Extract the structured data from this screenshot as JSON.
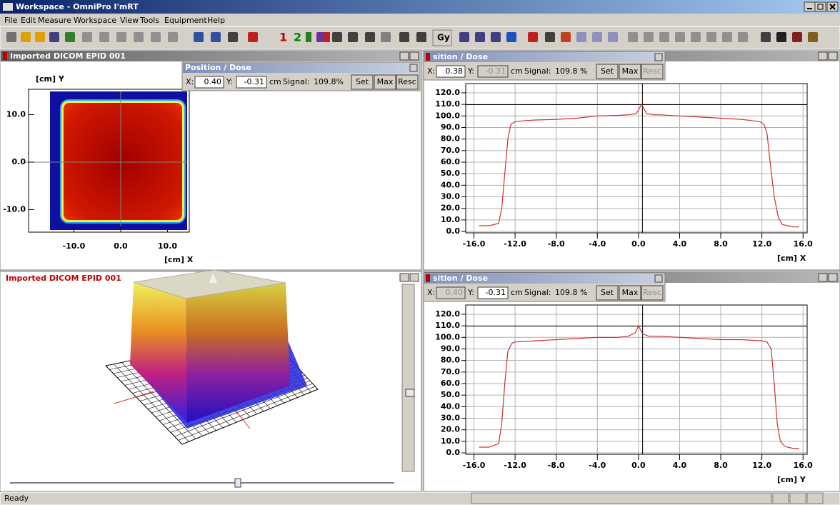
{
  "window": {
    "title": "Workspace - OmniPro I'mRT"
  },
  "menu": [
    "File",
    "Edit",
    "Measure",
    "Workspace",
    "View",
    "Tools",
    "Equipment",
    "Help"
  ],
  "toolbar": {
    "labels": [
      "1",
      "2",
      "Gy"
    ]
  },
  "panels": {
    "image_2d": {
      "title": "Imported DICOM EPID 001",
      "y_axis_label": "[cm] Y",
      "x_axis_label": "[cm] X",
      "xlim": [
        -15.1,
        14.2
      ],
      "ylim": [
        -14.3,
        14.9
      ],
      "xticks": [
        {
          "value": -10,
          "label": "-10.0"
        },
        {
          "value": 0,
          "label": "0.0"
        },
        {
          "value": 10,
          "label": "10.0"
        }
      ],
      "yticks": [
        {
          "value": 10,
          "label": "10.0"
        },
        {
          "value": 0,
          "label": "0.0"
        },
        {
          "value": -10,
          "label": "-10.0"
        }
      ]
    },
    "view_3d": {
      "title": "Imported DICOM EPID 001"
    }
  },
  "dialogs": [
    {
      "title": "Position / Dose",
      "x_label": "X:",
      "x": "0.40",
      "y_label": "Y:",
      "y": "-0.31",
      "unit": "cm",
      "signal_label": "Signal:",
      "signal": "109.8%",
      "buttons": [
        "Set",
        "Max",
        "Resc"
      ]
    },
    {
      "title": "sition / Dose",
      "x_label": "X:",
      "x": "0.38",
      "y_label": "Y:",
      "y": "-0.31",
      "unit": "cm",
      "signal_label": "Signal:",
      "signal": "109.8 %",
      "buttons": [
        "Set",
        "Max",
        "Resc"
      ]
    },
    {
      "title": "sition / Dose",
      "x_label": "X:",
      "x": "0.40",
      "y_label": "Y:",
      "y": "-0.31",
      "unit": "cm",
      "signal_label": "Signal:",
      "signal": "109.8 %",
      "buttons": [
        "Set",
        "Max",
        "Resc"
      ]
    }
  ],
  "chart_data": [
    {
      "type": "line",
      "xlabel": "[cm] X",
      "color": "#d03030",
      "grid": true,
      "x": [
        -15.5,
        -14.5,
        -13.6,
        -13.3,
        -13,
        -12.7,
        -12.4,
        -12,
        -11,
        -10,
        -8,
        -6,
        -4,
        -2,
        -1,
        -0.2,
        0.3,
        0.8,
        1.5,
        2,
        4,
        6,
        8,
        10,
        11,
        11.8,
        12.2,
        12.5,
        12.8,
        13.2,
        13.6,
        14,
        14.5,
        15,
        15.6
      ],
      "values": [
        5,
        5,
        7,
        20,
        50,
        80,
        93,
        95,
        96,
        96.5,
        97,
        98,
        100,
        100.5,
        101,
        102,
        110,
        102,
        101,
        101,
        100,
        99,
        98,
        97,
        96,
        95,
        93,
        85,
        60,
        30,
        12,
        6,
        5,
        4,
        4
      ],
      "xlim": [
        -16.8,
        16.4
      ],
      "ylim": [
        -1.2,
        128
      ],
      "xticks": [
        {
          "value": -16,
          "label": "-16.0"
        },
        {
          "value": -12,
          "label": "-12.0"
        },
        {
          "value": -8,
          "label": "-8.0"
        },
        {
          "value": -4,
          "label": "-4.0"
        },
        {
          "value": 0,
          "label": "0.0"
        },
        {
          "value": 4,
          "label": "4.0"
        },
        {
          "value": 8,
          "label": "8.0"
        },
        {
          "value": 12,
          "label": "12.0"
        },
        {
          "value": 16,
          "label": "16.0"
        }
      ],
      "yticks": [
        {
          "value": 0,
          "label": "0.0"
        },
        {
          "value": 10,
          "label": "10.0"
        },
        {
          "value": 20,
          "label": "20.0"
        },
        {
          "value": 30,
          "label": "30.0"
        },
        {
          "value": 40,
          "label": "40.0"
        },
        {
          "value": 50,
          "label": "50.0"
        },
        {
          "value": 60,
          "label": "60.0"
        },
        {
          "value": 70,
          "label": "70.0"
        },
        {
          "value": 80,
          "label": "80.0"
        },
        {
          "value": 90,
          "label": "90.0"
        },
        {
          "value": 100,
          "label": "100.0"
        },
        {
          "value": 110,
          "label": "110.0"
        },
        {
          "value": 120,
          "label": "120.0"
        }
      ]
    },
    {
      "type": "line",
      "xlabel": "[cm] Y",
      "color": "#d03030",
      "grid": true,
      "x": [
        -15.5,
        -14.5,
        -13.6,
        -13.3,
        -13,
        -12.7,
        -12.3,
        -12,
        -10,
        -8,
        -6,
        -4,
        -2,
        -1,
        -0.3,
        0,
        0.4,
        1,
        2,
        4,
        6,
        8,
        10,
        12,
        12.5,
        12.9,
        13.2,
        13.5,
        13.8,
        14.2,
        14.5,
        15,
        15.6
      ],
      "values": [
        5,
        5,
        8,
        25,
        60,
        88,
        95,
        96,
        97,
        98,
        99,
        100,
        100,
        101,
        104,
        110,
        103,
        101,
        101,
        100,
        99,
        98,
        98,
        97,
        96,
        90,
        60,
        25,
        10,
        6,
        5,
        4,
        4
      ],
      "xlim": [
        -16.8,
        16.4
      ],
      "ylim": [
        -1.2,
        128
      ],
      "xticks": [
        {
          "value": -16,
          "label": "-16.0"
        },
        {
          "value": -12,
          "label": "-12.0"
        },
        {
          "value": -8,
          "label": "-8.0"
        },
        {
          "value": -4,
          "label": "-4.0"
        },
        {
          "value": 0,
          "label": "0.0"
        },
        {
          "value": 4,
          "label": "4.0"
        },
        {
          "value": 8,
          "label": "8.0"
        },
        {
          "value": 12,
          "label": "12.0"
        },
        {
          "value": 16,
          "label": "16.0"
        }
      ],
      "yticks": [
        {
          "value": 0,
          "label": "0.0"
        },
        {
          "value": 10,
          "label": "10.0"
        },
        {
          "value": 20,
          "label": "20.0"
        },
        {
          "value": 30,
          "label": "30.0"
        },
        {
          "value": 40,
          "label": "40.0"
        },
        {
          "value": 50,
          "label": "50.0"
        },
        {
          "value": 60,
          "label": "60.0"
        },
        {
          "value": 70,
          "label": "70.0"
        },
        {
          "value": 80,
          "label": "80.0"
        },
        {
          "value": 90,
          "label": "90.0"
        },
        {
          "value": 100,
          "label": "100.0"
        },
        {
          "value": 110,
          "label": "110.0"
        },
        {
          "value": 120,
          "label": "120.0"
        }
      ]
    }
  ],
  "status_bar": {
    "text": "Ready"
  }
}
